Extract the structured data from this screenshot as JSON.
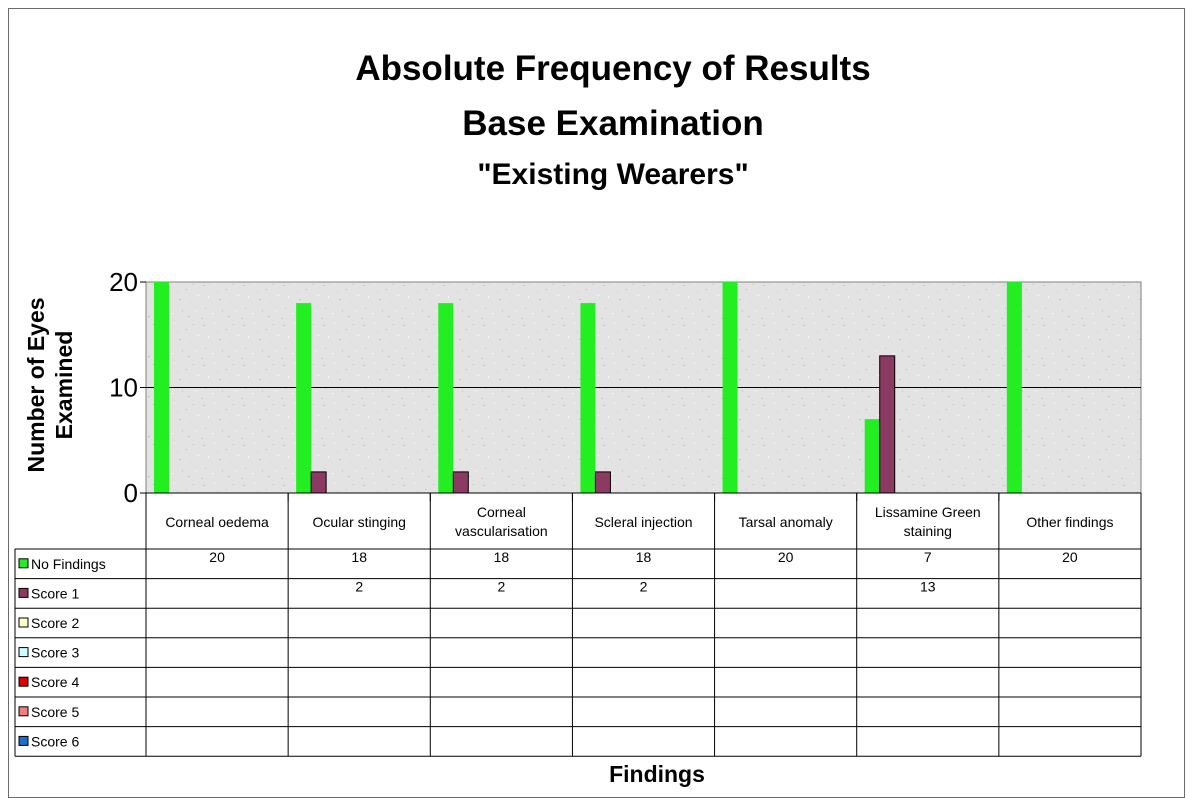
{
  "chart_data": {
    "type": "bar",
    "title": "Absolute Frequency of Results",
    "subtitle": "Base Examination",
    "subtitle2": "\"Existing Wearers\"",
    "xlabel": "Findings",
    "ylabel_line1": "Number of Eyes",
    "ylabel_line2": "Examined",
    "ylim": [
      0,
      20
    ],
    "yticks": [
      "0",
      "10",
      "20"
    ],
    "grid": true,
    "legend": "data-table-left",
    "categories": [
      [
        "Corneal oedema"
      ],
      [
        "Ocular stinging"
      ],
      [
        "Corneal",
        "vascularisation"
      ],
      [
        "Scleral injection"
      ],
      [
        "Tarsal anomaly"
      ],
      [
        "Lissamine Green",
        "staining"
      ],
      [
        "Other findings"
      ]
    ],
    "series": [
      {
        "name": "No Findings",
        "color": "#22ee22",
        "values": [
          20,
          18,
          18,
          18,
          20,
          7,
          20
        ]
      },
      {
        "name": "Score 1",
        "color": "#8b3a62",
        "values": [
          null,
          2,
          2,
          2,
          null,
          13,
          null
        ]
      },
      {
        "name": "Score 2",
        "color": "#ffffcc",
        "values": [
          null,
          null,
          null,
          null,
          null,
          null,
          null
        ]
      },
      {
        "name": "Score 3",
        "color": "#ccffff",
        "values": [
          null,
          null,
          null,
          null,
          null,
          null,
          null
        ]
      },
      {
        "name": "Score 4",
        "color": "#dd0000",
        "values": [
          null,
          null,
          null,
          null,
          null,
          null,
          null
        ]
      },
      {
        "name": "Score 5",
        "color": "#f08080",
        "values": [
          null,
          null,
          null,
          null,
          null,
          null,
          null
        ]
      },
      {
        "name": "Score 6",
        "color": "#1e6fc8",
        "values": [
          null,
          null,
          null,
          null,
          null,
          null,
          null
        ]
      }
    ]
  }
}
